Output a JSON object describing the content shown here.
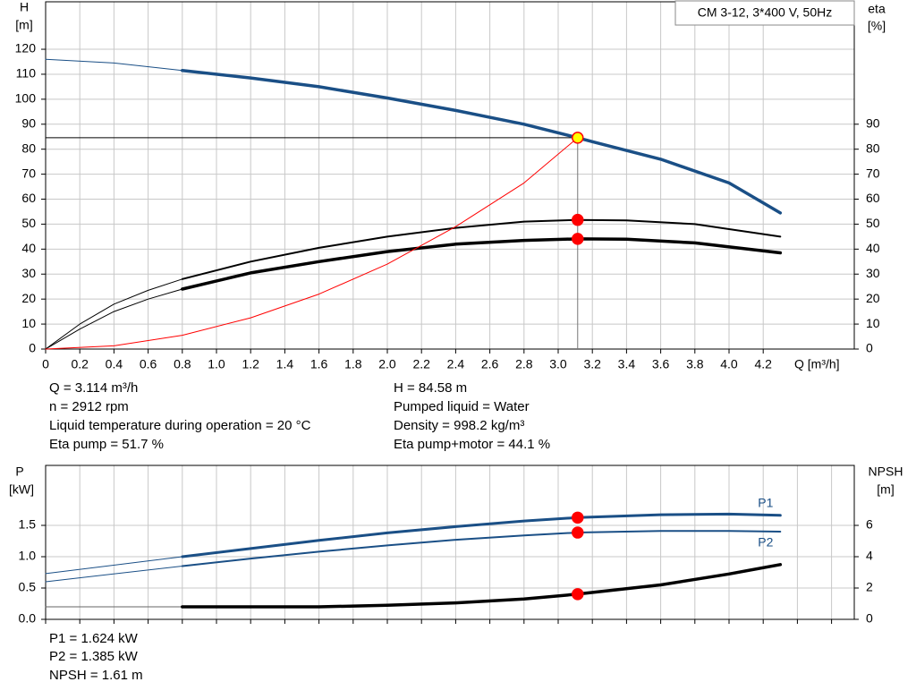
{
  "title_box": "CM 3-12, 3*400 V, 50Hz",
  "chart_data": [
    {
      "type": "line",
      "y_label": "H",
      "y_unit": "[m]",
      "y2_label": "eta",
      "y2_unit": "[%]",
      "x_label": "Q [m³/h]",
      "xlim": [
        0,
        4.733
      ],
      "ylim": [
        0,
        139
      ],
      "y2lim": [
        0,
        139
      ],
      "show_xtick_labels": true,
      "grid": true,
      "marker_x": 3.114,
      "xticks": [
        0,
        0.2,
        0.4,
        0.6,
        0.8,
        {
          "value": 1,
          "label": "1.0"
        },
        1.2,
        1.4,
        1.6,
        1.8,
        {
          "value": 2,
          "label": "2.0"
        },
        2.2,
        2.4,
        2.6,
        2.8,
        {
          "value": 3,
          "label": "3.0"
        },
        3.2,
        3.4,
        3.6,
        3.8,
        {
          "value": 4,
          "label": "4.0"
        },
        4.2
      ],
      "yticks": [
        0,
        10,
        20,
        30,
        40,
        50,
        60,
        70,
        80,
        90,
        100,
        110,
        120
      ],
      "y2ticks": [
        0,
        10,
        20,
        30,
        40,
        50,
        60,
        70,
        80,
        90
      ],
      "series": [
        {
          "color": "#1a4f86",
          "width": 1,
          "x": [
            0,
            0.4,
            0.8
          ],
          "values": [
            116,
            114.5,
            111.5
          ]
        },
        {
          "color": "#1a4f86",
          "width": 3.5,
          "marker": "#ffff00",
          "guide": true,
          "x": [
            0.8,
            1.2,
            1.6,
            2.0,
            2.4,
            2.8,
            3.114,
            3.2,
            3.6,
            4.0,
            4.3
          ],
          "values": [
            111.5,
            108.5,
            105,
            100.5,
            95.5,
            90,
            84.58,
            83,
            76,
            66.5,
            54.5
          ]
        },
        {
          "color": "#000000",
          "width": 1,
          "axis": "y2",
          "x": [
            0,
            0.2,
            0.4,
            0.6,
            0.8
          ],
          "values": [
            0,
            10,
            18,
            23.5,
            28
          ]
        },
        {
          "color": "#000000",
          "width": 2,
          "axis": "y2",
          "marker": "#ff0000",
          "x": [
            0.8,
            1.2,
            1.6,
            2.0,
            2.4,
            2.8,
            3.114,
            3.4,
            3.8,
            4.3
          ],
          "values": [
            28,
            35,
            40.5,
            45,
            48.5,
            51,
            51.7,
            51.5,
            50,
            45
          ]
        },
        {
          "color": "#000000",
          "width": 1,
          "axis": "y2",
          "x": [
            0,
            0.2,
            0.4,
            0.6,
            0.8
          ],
          "values": [
            0,
            8,
            15,
            20,
            24
          ]
        },
        {
          "color": "#000000",
          "width": 3.5,
          "axis": "y2",
          "marker": "#ff0000",
          "x": [
            0.8,
            1.2,
            1.6,
            2.0,
            2.4,
            2.8,
            3.114,
            3.4,
            3.8,
            4.3
          ],
          "values": [
            24,
            30.5,
            35,
            39,
            42,
            43.5,
            44.1,
            44,
            42.5,
            38.5
          ]
        },
        {
          "color": "#ff0000",
          "width": 1,
          "x": [
            0,
            0.4,
            0.8,
            1.2,
            1.6,
            2.0,
            2.4,
            2.8,
            3.114
          ],
          "values": [
            0,
            1.3,
            5.5,
            12.5,
            22,
            34,
            49,
            66.5,
            84.58
          ]
        }
      ]
    },
    {
      "type": "line",
      "y_label": "P",
      "y_unit": "[kW]",
      "y2_label": "NPSH",
      "y2_unit": "[m]",
      "xlim": [
        0,
        4.733
      ],
      "ylim": [
        0,
        2.457
      ],
      "y2lim": [
        0,
        9.83
      ],
      "show_xtick_labels": false,
      "grid": true,
      "marker_x": 3.114,
      "xticks": [
        0,
        0.2,
        0.4,
        0.6,
        0.8,
        1,
        1.2,
        1.4,
        1.6,
        1.8,
        2,
        2.2,
        2.4,
        2.6,
        2.8,
        3,
        3.2,
        3.4,
        3.6,
        3.8,
        4,
        4.2,
        4.4,
        4.6
      ],
      "yticks": [
        {
          "value": 0,
          "label": "0.0"
        },
        0.5,
        {
          "value": 1,
          "label": "1.0"
        },
        1.5
      ],
      "y2ticks": [
        0,
        2,
        4,
        6
      ],
      "series": [
        {
          "color": "#1a4f86",
          "width": 1,
          "x": [
            0,
            0.8
          ],
          "values": [
            0.73,
            1.0
          ]
        },
        {
          "name": "P1",
          "label_side": "above",
          "color": "#1a4f86",
          "width": 3,
          "marker": "#ff0000",
          "x": [
            0.8,
            1.2,
            1.6,
            2.0,
            2.4,
            2.8,
            3.114,
            3.6,
            4.0,
            4.3
          ],
          "values": [
            1.0,
            1.13,
            1.26,
            1.38,
            1.48,
            1.57,
            1.624,
            1.67,
            1.68,
            1.66
          ]
        },
        {
          "color": "#1a4f86",
          "width": 1,
          "x": [
            0,
            0.8
          ],
          "values": [
            0.6,
            0.85
          ]
        },
        {
          "name": "P2",
          "label_side": "below",
          "color": "#1a4f86",
          "width": 2,
          "marker": "#ff0000",
          "x": [
            0.8,
            1.2,
            1.6,
            2.0,
            2.4,
            2.8,
            3.114,
            3.6,
            4.0,
            4.3
          ],
          "values": [
            0.85,
            0.97,
            1.08,
            1.18,
            1.27,
            1.34,
            1.385,
            1.41,
            1.41,
            1.4
          ]
        },
        {
          "color": "#666666",
          "width": 1,
          "axis": "y2",
          "x": [
            0,
            0.8
          ],
          "values": [
            0.8,
            0.8
          ]
        },
        {
          "color": "#000000",
          "width": 3.5,
          "axis": "y2",
          "marker": "#ff0000",
          "x": [
            0.8,
            1.6,
            2.0,
            2.4,
            2.8,
            3.114,
            3.6,
            4.0,
            4.3
          ],
          "values": [
            0.8,
            0.8,
            0.9,
            1.05,
            1.3,
            1.61,
            2.2,
            2.9,
            3.5
          ]
        }
      ]
    }
  ],
  "operating_point": {
    "left": [
      "Q = 3.114 m³/h",
      "n = 2912 rpm",
      "Liquid temperature during operation = 20 °C",
      "Eta pump = 51.7 %"
    ],
    "right": [
      "H = 84.58 m",
      "Pumped liquid = Water",
      "Density = 998.2 kg/m³",
      "Eta pump+motor = 44.1 %"
    ]
  },
  "power": [
    "P1 = 1.624 kW",
    "P2 = 1.385 kW",
    "NPSH = 1.61 m"
  ]
}
